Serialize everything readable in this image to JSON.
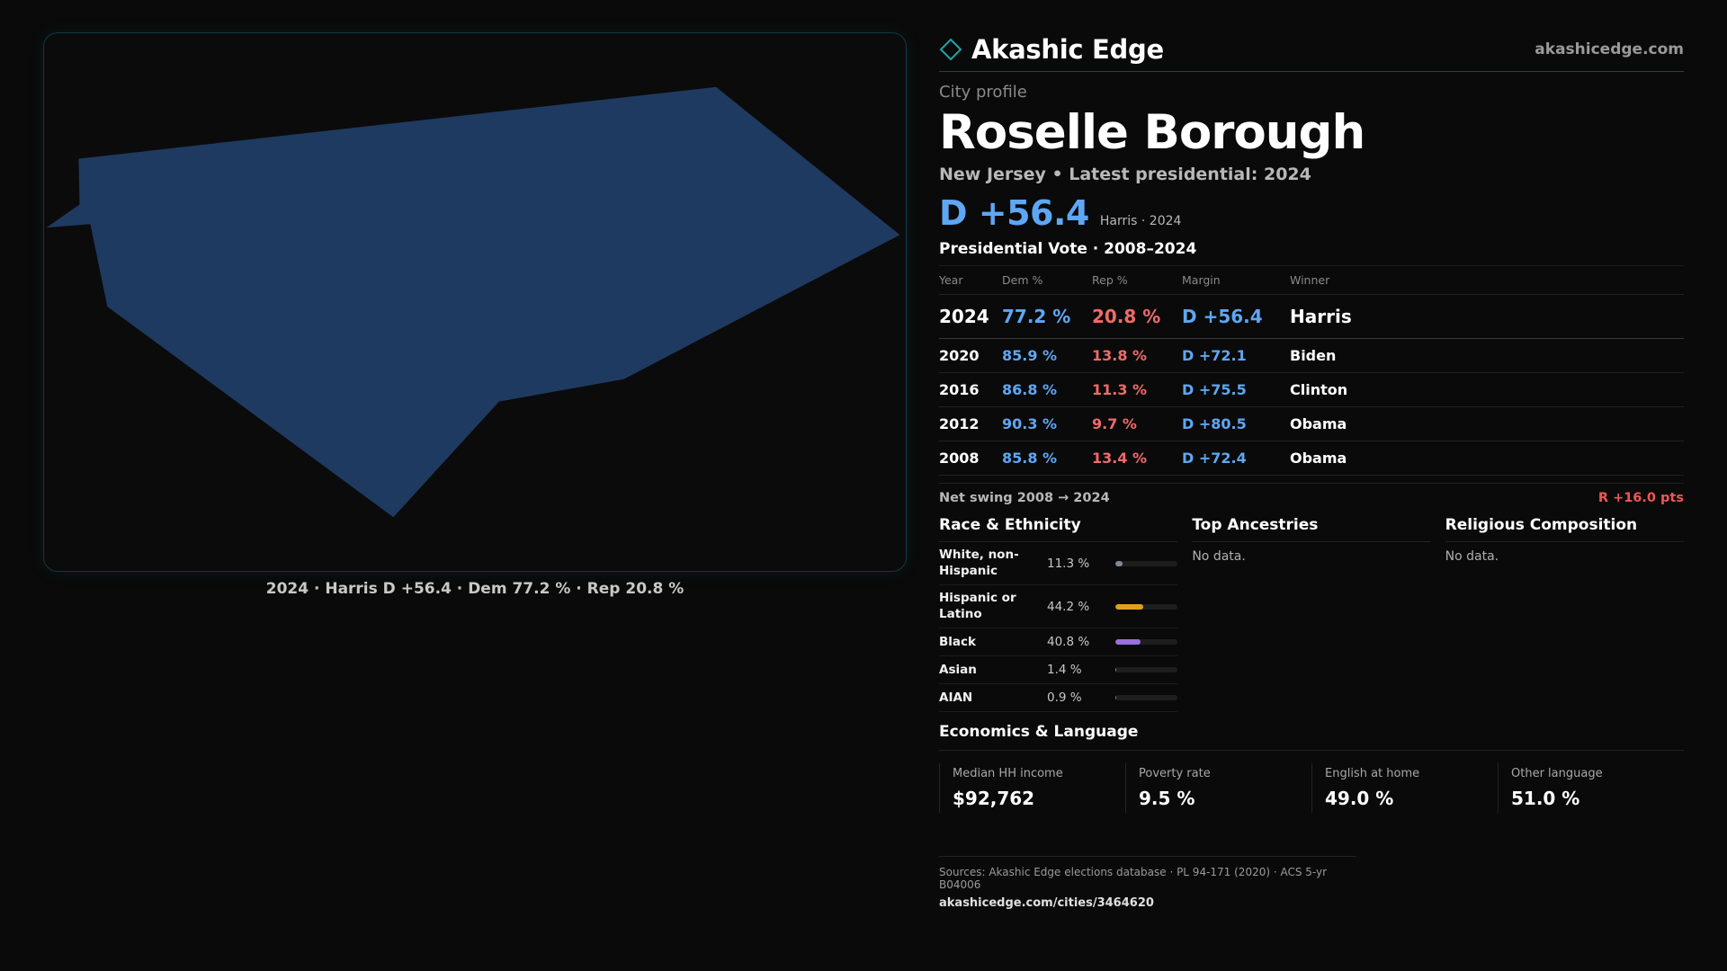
{
  "brand": {
    "name": "Akashic Edge",
    "url": "akashicedge.com",
    "logo_icon": "diamond-outline-icon",
    "accent": "#1fa4a8"
  },
  "map": {
    "fill": "#1f3a60",
    "caption": "2024 · Harris D +56.4 · Dem 77.2 % · Rep 20.8 %"
  },
  "profile": {
    "eyebrow": "City profile",
    "name": "Roselle Borough",
    "subline": "New Jersey • Latest presidential: 2024",
    "headline_margin": "D +56.4",
    "headline_note": "Harris · 2024"
  },
  "presidential": {
    "title": "Presidential Vote · 2008–2024",
    "columns": [
      "Year",
      "Dem %",
      "Rep %",
      "Margin",
      "Winner"
    ],
    "rows": [
      {
        "year": "2024",
        "dem": "77.2 %",
        "rep": "20.8 %",
        "margin": "D +56.4",
        "winner": "Harris"
      },
      {
        "year": "2020",
        "dem": "85.9 %",
        "rep": "13.8 %",
        "margin": "D +72.1",
        "winner": "Biden"
      },
      {
        "year": "2016",
        "dem": "86.8 %",
        "rep": "11.3 %",
        "margin": "D +75.5",
        "winner": "Clinton"
      },
      {
        "year": "2012",
        "dem": "90.3 %",
        "rep": "9.7 %",
        "margin": "D +80.5",
        "winner": "Obama"
      },
      {
        "year": "2008",
        "dem": "85.8 %",
        "rep": "13.4 %",
        "margin": "D +72.4",
        "winner": "Obama"
      }
    ],
    "swing_label": "Net swing 2008 → 2024",
    "swing_value": "R +16.0 pts"
  },
  "race": {
    "title": "Race & Ethnicity",
    "rows": [
      {
        "label": "White, non-Hispanic",
        "pct": "11.3 %",
        "value": 11.3,
        "color": "#7f8a99"
      },
      {
        "label": "Hispanic or Latino",
        "pct": "44.2 %",
        "value": 44.2,
        "color": "#e0a11b"
      },
      {
        "label": "Black",
        "pct": "40.8 %",
        "value": 40.8,
        "color": "#9a6ee0"
      },
      {
        "label": "Asian",
        "pct": "1.4 %",
        "value": 1.4,
        "color": "#2fb8a8"
      },
      {
        "label": "AIAN",
        "pct": "0.9 %",
        "value": 0.9,
        "color": "#d06a3a"
      }
    ]
  },
  "ancestries": {
    "title": "Top Ancestries",
    "empty": "No data."
  },
  "religion": {
    "title": "Religious Composition",
    "empty": "No data."
  },
  "economics": {
    "title": "Economics & Language",
    "stats": [
      {
        "label": "Median HH income",
        "value": "$92,762"
      },
      {
        "label": "Poverty rate",
        "value": "9.5 %"
      },
      {
        "label": "English at home",
        "value": "49.0 %"
      },
      {
        "label": "Other language",
        "value": "51.0 %"
      }
    ]
  },
  "sources": {
    "text": "Sources: Akashic Edge elections database · PL 94-171 (2020) · ACS 5-yr B04006",
    "url": "akashicedge.com/cities/3464620"
  }
}
